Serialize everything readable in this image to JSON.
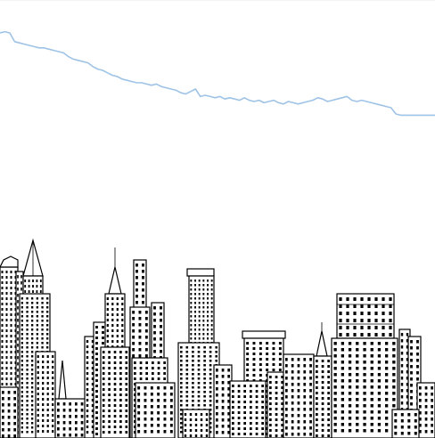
{
  "colors": {
    "background": "#ffffff",
    "trend_line": "#9ec3e6",
    "ink": "#000000"
  },
  "trend_line": {
    "values": [
      95,
      96,
      95,
      88,
      87,
      86,
      85,
      84,
      83,
      83,
      82,
      81,
      80,
      79,
      76,
      74,
      73,
      72,
      71,
      68,
      66,
      65,
      63,
      61,
      60,
      58,
      57,
      56,
      55,
      55,
      54,
      53,
      54,
      52,
      51,
      50,
      49,
      47,
      46,
      48,
      50,
      44,
      45,
      44,
      43,
      44,
      42,
      43,
      42,
      41,
      43,
      41,
      40,
      41,
      39,
      40,
      41,
      39,
      38,
      40,
      39,
      38,
      39,
      40,
      41,
      43,
      42,
      40,
      41,
      42,
      43,
      44,
      41,
      40,
      41,
      40,
      39,
      38,
      37,
      36,
      35,
      30,
      29,
      29,
      29,
      29,
      29,
      29,
      29,
      29
    ]
  },
  "skyline": {
    "style": "line-art"
  }
}
